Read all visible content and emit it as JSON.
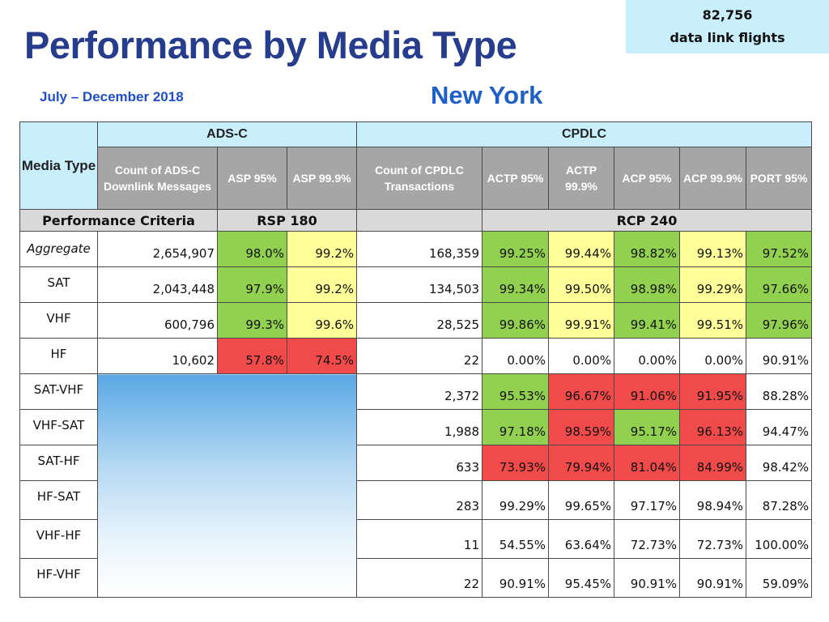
{
  "title": "Performance by Media Type",
  "subtitle": "July – December 2018",
  "region": "New York",
  "flights": {
    "count": "82,756",
    "label": "data link flights"
  },
  "table": {
    "group_adsc": "ADS-C",
    "group_cpdlc": "CPDLC",
    "media_type_header": "Media Type",
    "col_headers": {
      "adsc_count": "Count of ADS-C Downlink Messages",
      "asp95": "ASP 95%",
      "asp999": "ASP 99.9%",
      "cpdlc_count": "Count of CPDLC Transactions",
      "actp95": "ACTP 95%",
      "actp999": "ACTP 99.9%",
      "acp95": "ACP 95%",
      "acp999": "ACP 99.9%",
      "port95": "PORT 95%"
    },
    "criteria_label": "Performance Criteria",
    "rsp": "RSP 180",
    "rcp": "RCP 240",
    "rows": [
      {
        "label": "Aggregate",
        "adsc_count": "2,654,907",
        "asp95": "98.0%",
        "asp999": "99.2%",
        "cpdlc_count": "168,359",
        "actp95": "99.25%",
        "actp999": "99.44%",
        "acp95": "98.82%",
        "acp999": "99.13%",
        "port95": "97.52%"
      },
      {
        "label": "SAT",
        "adsc_count": "2,043,448",
        "asp95": "97.9%",
        "asp999": "99.2%",
        "cpdlc_count": "134,503",
        "actp95": "99.34%",
        "actp999": "99.50%",
        "acp95": "98.98%",
        "acp999": "99.29%",
        "port95": "97.66%"
      },
      {
        "label": "VHF",
        "adsc_count": "600,796",
        "asp95": "99.3%",
        "asp999": "99.6%",
        "cpdlc_count": "28,525",
        "actp95": "99.86%",
        "actp999": "99.91%",
        "acp95": "99.41%",
        "acp999": "99.51%",
        "port95": "97.96%"
      },
      {
        "label": "HF",
        "adsc_count": "10,602",
        "asp95": "57.8%",
        "asp999": "74.5%",
        "cpdlc_count": "22",
        "actp95": "0.00%",
        "actp999": "0.00%",
        "acp95": "0.00%",
        "acp999": "0.00%",
        "port95": "90.91%"
      },
      {
        "label": "SAT-VHF",
        "cpdlc_count": "2,372",
        "actp95": "95.53%",
        "actp999": "96.67%",
        "acp95": "91.06%",
        "acp999": "91.95%",
        "port95": "88.28%"
      },
      {
        "label": "VHF-SAT",
        "cpdlc_count": "1,988",
        "actp95": "97.18%",
        "actp999": "98.59%",
        "acp95": "95.17%",
        "acp999": "96.13%",
        "port95": "94.47%"
      },
      {
        "label": "SAT-HF",
        "cpdlc_count": "633",
        "actp95": "73.93%",
        "actp999": "79.94%",
        "acp95": "81.04%",
        "acp999": "84.99%",
        "port95": "98.42%"
      },
      {
        "label": "HF-SAT",
        "cpdlc_count": "283",
        "actp95": "99.29%",
        "actp999": "99.65%",
        "acp95": "97.17%",
        "acp999": "98.94%",
        "port95": "87.28%"
      },
      {
        "label": "VHF-HF",
        "cpdlc_count": "11",
        "actp95": "54.55%",
        "actp999": "63.64%",
        "acp95": "72.73%",
        "acp999": "72.73%",
        "port95": "100.00%"
      },
      {
        "label": "HF-VHF",
        "cpdlc_count": "22",
        "actp95": "90.91%",
        "actp999": "95.45%",
        "acp95": "90.91%",
        "acp999": "90.91%",
        "port95": "59.09%"
      }
    ]
  },
  "colors": {
    "title": "#263C8C",
    "pass": "#92D050",
    "marginal": "#FFFF99",
    "fail": "#F04A4A",
    "header": "#C9EFFC"
  }
}
